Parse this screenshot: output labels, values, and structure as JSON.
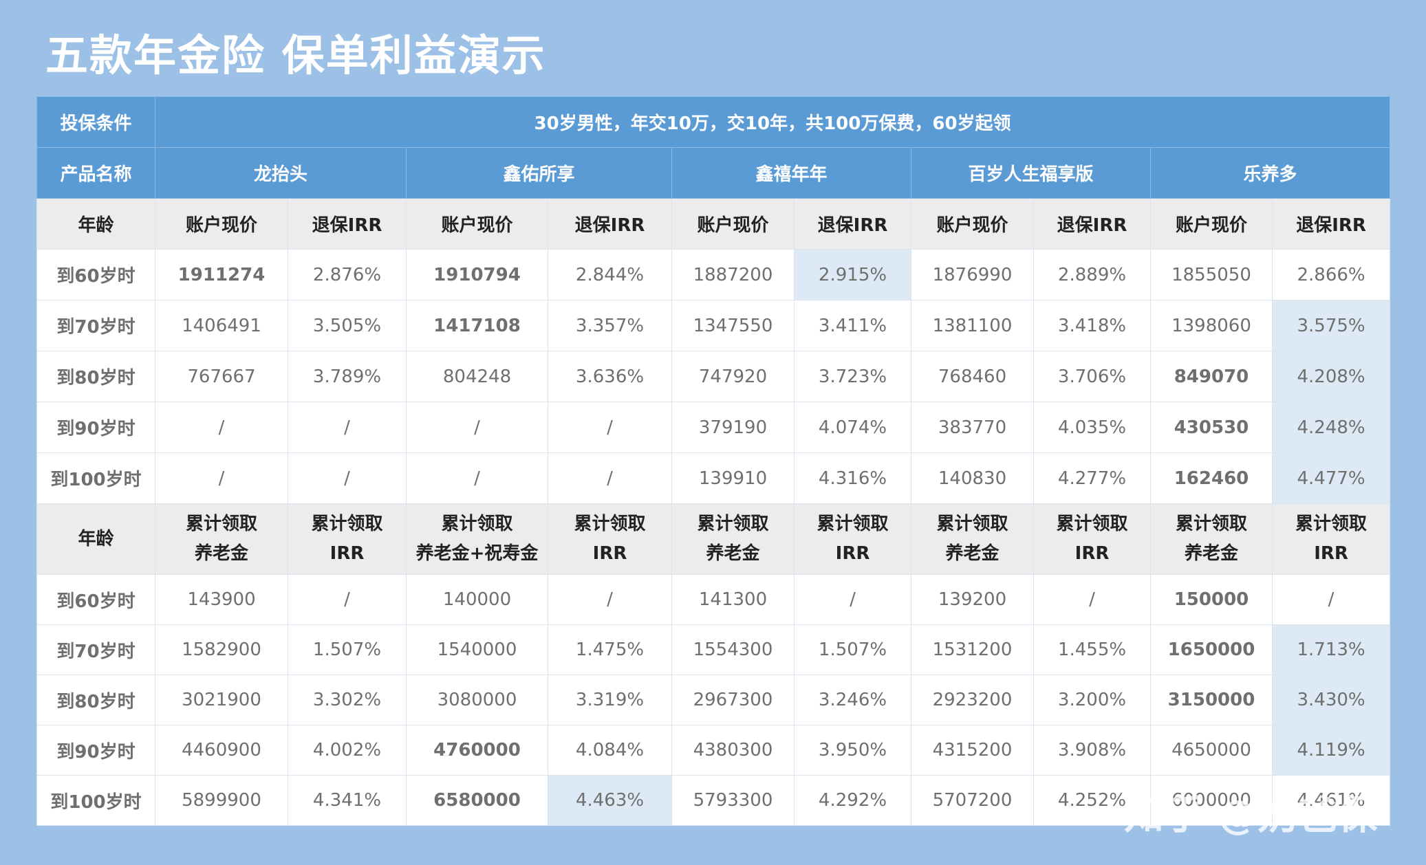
{
  "title": "五款年金险 保单利益演示",
  "condition": {
    "label": "投保条件",
    "value": "30岁男性，年交10万，交10年，共100万保费，60岁起领"
  },
  "product_label": "产品名称",
  "products": [
    "龙抬头",
    "鑫佑所享",
    "鑫禧年年",
    "百岁人生福享版",
    "乐养多"
  ],
  "section1": {
    "header": [
      "年龄",
      "账户现价",
      "退保IRR",
      "账户现价",
      "退保IRR",
      "账户现价",
      "退保IRR",
      "账户现价",
      "退保IRR",
      "账户现价",
      "退保IRR"
    ],
    "rows": [
      [
        "到60岁时",
        "1911274",
        "2.876%",
        "1910794",
        "2.844%",
        "1887200",
        "2.915%",
        "1876990",
        "2.889%",
        "1855050",
        "2.866%"
      ],
      [
        "到70岁时",
        "1406491",
        "3.505%",
        "1417108",
        "3.357%",
        "1347550",
        "3.411%",
        "1381100",
        "3.418%",
        "1398060",
        "3.575%"
      ],
      [
        "到80岁时",
        "767667",
        "3.789%",
        "804248",
        "3.636%",
        "747920",
        "3.723%",
        "768460",
        "3.706%",
        "849070",
        "4.208%"
      ],
      [
        "到90岁时",
        "/",
        "/",
        "/",
        "/",
        "379190",
        "4.074%",
        "383770",
        "4.035%",
        "430530",
        "4.248%"
      ],
      [
        "到100岁时",
        "/",
        "/",
        "/",
        "/",
        "139910",
        "4.316%",
        "140830",
        "4.277%",
        "162460",
        "4.477%"
      ]
    ]
  },
  "section2": {
    "header": [
      [
        "年龄"
      ],
      [
        "累计领取",
        "养老金"
      ],
      [
        "累计领取",
        "IRR"
      ],
      [
        "累计领取",
        "养老金+祝寿金"
      ],
      [
        "累计领取",
        "IRR"
      ],
      [
        "累计领取",
        "养老金"
      ],
      [
        "累计领取",
        "IRR"
      ],
      [
        "累计领取",
        "养老金"
      ],
      [
        "累计领取",
        "IRR"
      ],
      [
        "累计领取",
        "养老金"
      ],
      [
        "累计领取",
        "IRR"
      ]
    ],
    "rows": [
      [
        "到60岁时",
        "143900",
        "/",
        "140000",
        "/",
        "141300",
        "/",
        "139200",
        "/",
        "150000",
        "/"
      ],
      [
        "到70岁时",
        "1582900",
        "1.507%",
        "1540000",
        "1.475%",
        "1554300",
        "1.507%",
        "1531200",
        "1.455%",
        "1650000",
        "1.713%"
      ],
      [
        "到80岁时",
        "3021900",
        "3.302%",
        "3080000",
        "3.319%",
        "2967300",
        "3.246%",
        "2923200",
        "3.200%",
        "3150000",
        "3.430%"
      ],
      [
        "到90岁时",
        "4460900",
        "4.002%",
        "4760000",
        "4.084%",
        "4380300",
        "3.950%",
        "4315200",
        "3.908%",
        "4650000",
        "4.119%"
      ],
      [
        "到100岁时",
        "5899900",
        "4.341%",
        "6580000",
        "4.463%",
        "5793300",
        "4.292%",
        "5707200",
        "4.252%",
        "6000000",
        "4.461%"
      ]
    ]
  },
  "watermark": {
    "brand": "知乎",
    "handle": "@奶爸保"
  },
  "colors": {
    "background": "#9dc1e6",
    "header_blue": "#5b9bd5",
    "highlight": "#ddeaf6",
    "emphasis_red": "#d50f1e"
  }
}
